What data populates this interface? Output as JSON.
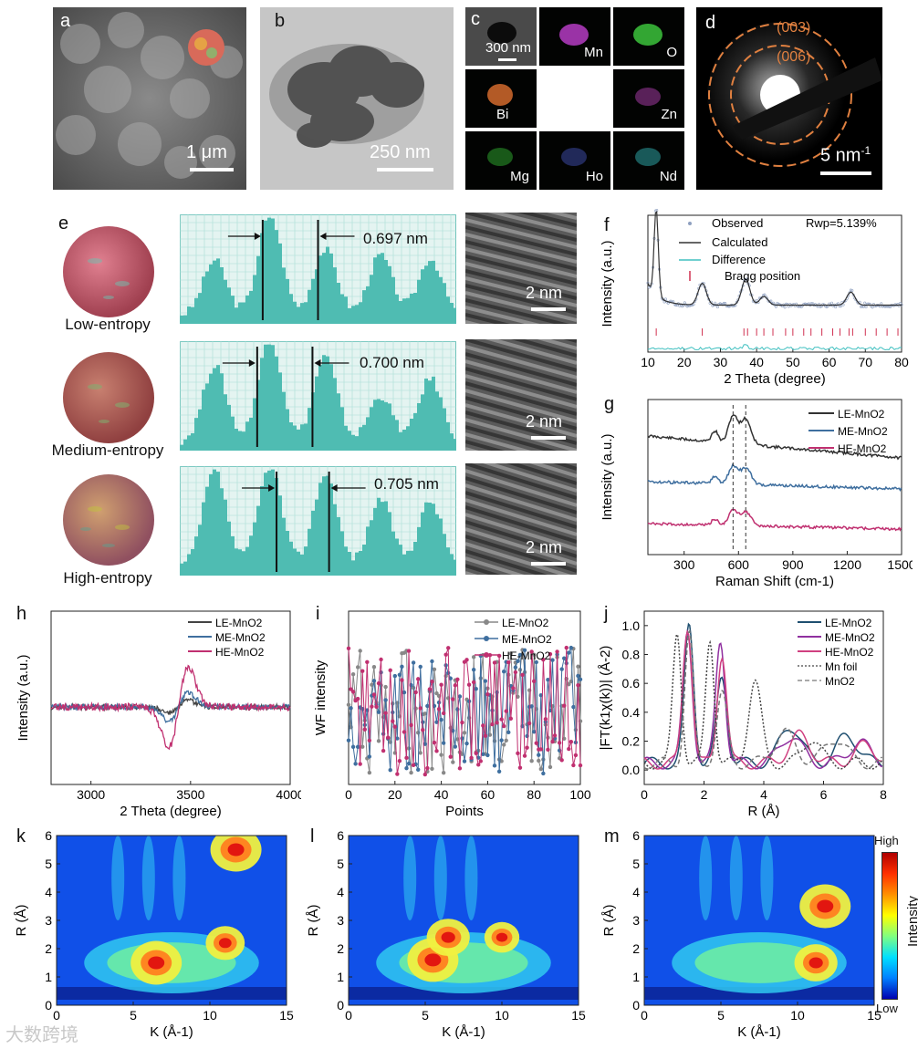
{
  "panels": {
    "a": {
      "letter": "a",
      "scale": "1 μm"
    },
    "b": {
      "letter": "b",
      "scale": "250 nm"
    },
    "c": {
      "letter": "c",
      "scale": "300 nm",
      "elements": [
        "Mn",
        "O",
        "Bi",
        "Zn",
        "Mg",
        "Ho",
        "Nd"
      ],
      "colors": {
        "Mn": "#c040d0",
        "O": "#40d040",
        "Bi": "#e07030",
        "Zn": "#b040b0",
        "Mg": "#30b030",
        "Ho": "#4050b0",
        "Nd": "#30b0b0"
      }
    },
    "d": {
      "letter": "d",
      "scale": "5 nm",
      "scale_sup": "-1",
      "ring1": "(003)",
      "ring2": "(006)"
    },
    "e": {
      "letter": "e",
      "rows": [
        {
          "caption": "Low-entropy",
          "spacing": "0.697 nm",
          "scale": "2 nm"
        },
        {
          "caption": "Medium-entropy",
          "spacing": "0.700 nm",
          "scale": "2 nm"
        },
        {
          "caption": "High-entropy",
          "spacing": "0.705 nm",
          "scale": "2 nm"
        }
      ]
    },
    "f": {
      "letter": "f"
    },
    "g": {
      "letter": "g"
    },
    "h": {
      "letter": "h"
    },
    "i": {
      "letter": "i"
    },
    "j": {
      "letter": "j"
    },
    "k": {
      "letter": "k"
    },
    "l": {
      "letter": "l"
    },
    "m": {
      "letter": "m"
    }
  },
  "colorbar": {
    "high": "High",
    "low": "Low",
    "label": "Intensity"
  },
  "watermark": "大数跨境",
  "chart_data": [
    {
      "id": "f",
      "type": "line",
      "ylabel": "Intensity (a.u.)",
      "xlabel": "2 Theta (degree)",
      "xlim": [
        10,
        80
      ],
      "xticks": [
        10,
        20,
        30,
        40,
        50,
        60,
        70,
        80
      ],
      "legend": [
        "Observed",
        "Calculated",
        "Difference",
        "Bragg position"
      ],
      "annotation": "Rwp=5.139%",
      "peaks": [
        [
          12.3,
          1.0
        ],
        [
          25,
          0.25
        ],
        [
          37,
          0.3
        ],
        [
          42,
          0.1
        ],
        [
          66,
          0.15
        ]
      ],
      "bragg_positions": [
        12.3,
        25,
        36.5,
        37.5,
        40,
        42,
        44.5,
        48,
        50,
        53,
        55,
        58,
        61,
        63,
        65.5,
        66.5,
        70,
        73,
        76,
        79
      ],
      "colors": {
        "observed": "#8fa0c0",
        "calculated": "#333333",
        "difference": "#40c0c0",
        "bragg": "#d03050"
      }
    },
    {
      "id": "g",
      "type": "line",
      "ylabel": "Intensity (a.u.)",
      "xlabel": "Raman Shift (cm-1)",
      "xlim": [
        100,
        1500
      ],
      "xticks": [
        300,
        600,
        900,
        1200,
        1500
      ],
      "series": [
        {
          "name": "LE-MnO2",
          "color": "#333333"
        },
        {
          "name": "ME-MnO2",
          "color": "#3f6f9f"
        },
        {
          "name": "HE-MnO2",
          "color": "#c03070"
        }
      ],
      "dashed_lines": [
        570,
        640
      ]
    },
    {
      "id": "h",
      "type": "line",
      "ylabel": "Intensity (a.u.)",
      "xlabel": "2 Theta (degree)",
      "xlim": [
        2800,
        4000
      ],
      "xticks": [
        3000,
        3500,
        4000
      ],
      "series": [
        {
          "name": "LE-MnO2",
          "color": "#444444"
        },
        {
          "name": "ME-MnO2",
          "color": "#3f6f9f"
        },
        {
          "name": "HE-MnO2",
          "color": "#c03070"
        }
      ]
    },
    {
      "id": "i",
      "type": "line",
      "ylabel": "WF intensity",
      "xlabel": "Points",
      "xlim": [
        0,
        100
      ],
      "xticks": [
        0,
        20,
        40,
        60,
        80,
        100
      ],
      "series": [
        {
          "name": "LE-MnO2",
          "color": "#888888"
        },
        {
          "name": "ME-MnO2",
          "color": "#3f6f9f"
        },
        {
          "name": "HE-MnO2",
          "color": "#c03070"
        }
      ]
    },
    {
      "id": "j",
      "type": "line",
      "ylabel": "|FT(k1χ(k))| (Å-2)",
      "xlabel": "R (Å)",
      "xlim": [
        0,
        8
      ],
      "ylim": [
        -0.1,
        1.1
      ],
      "xticks": [
        0,
        2,
        4,
        6,
        8
      ],
      "yticks": [
        0.0,
        0.2,
        0.4,
        0.6,
        0.8,
        1.0
      ],
      "series": [
        {
          "name": "LE-MnO2",
          "color": "#1f4f70"
        },
        {
          "name": "ME-MnO2",
          "color": "#9030a0"
        },
        {
          "name": "HE-MnO2",
          "color": "#d04080"
        },
        {
          "name": "Mn foil",
          "color": "#444444"
        },
        {
          "name": "MnO2",
          "color": "#777777"
        }
      ]
    },
    {
      "id": "k",
      "type": "heatmap",
      "xlabel": "K (Å-1)",
      "ylabel": "R (Å)",
      "xlim": [
        0,
        15
      ],
      "ylim": [
        0,
        6
      ],
      "xticks": [
        0,
        5,
        10,
        15
      ],
      "yticks": [
        0,
        1,
        2,
        3,
        4,
        5,
        6
      ],
      "hotspots": [
        [
          6.5,
          1.5,
          1.0
        ],
        [
          11.7,
          5.5,
          1.0
        ],
        [
          11,
          2.2,
          0.7
        ]
      ]
    },
    {
      "id": "l",
      "type": "heatmap",
      "xlabel": "K (Å-1)",
      "ylabel": "R (Å)",
      "xlim": [
        0,
        15
      ],
      "ylim": [
        0,
        6
      ],
      "xticks": [
        0,
        5,
        10,
        15
      ],
      "yticks": [
        0,
        1,
        2,
        3,
        4,
        5,
        6
      ],
      "hotspots": [
        [
          5.5,
          1.6,
          1.0
        ],
        [
          6.5,
          2.4,
          0.8
        ],
        [
          10,
          2.4,
          0.6
        ]
      ]
    },
    {
      "id": "m",
      "type": "heatmap",
      "xlabel": "K (Å-1)",
      "ylabel": "R (Å)",
      "xlim": [
        0,
        15
      ],
      "ylim": [
        0,
        6
      ],
      "xticks": [
        0,
        5,
        10,
        15
      ],
      "yticks": [
        0,
        1,
        2,
        3,
        4,
        5,
        6
      ],
      "hotspots": [
        [
          11.8,
          3.5,
          1.0
        ],
        [
          11.2,
          1.5,
          0.8
        ]
      ]
    }
  ]
}
